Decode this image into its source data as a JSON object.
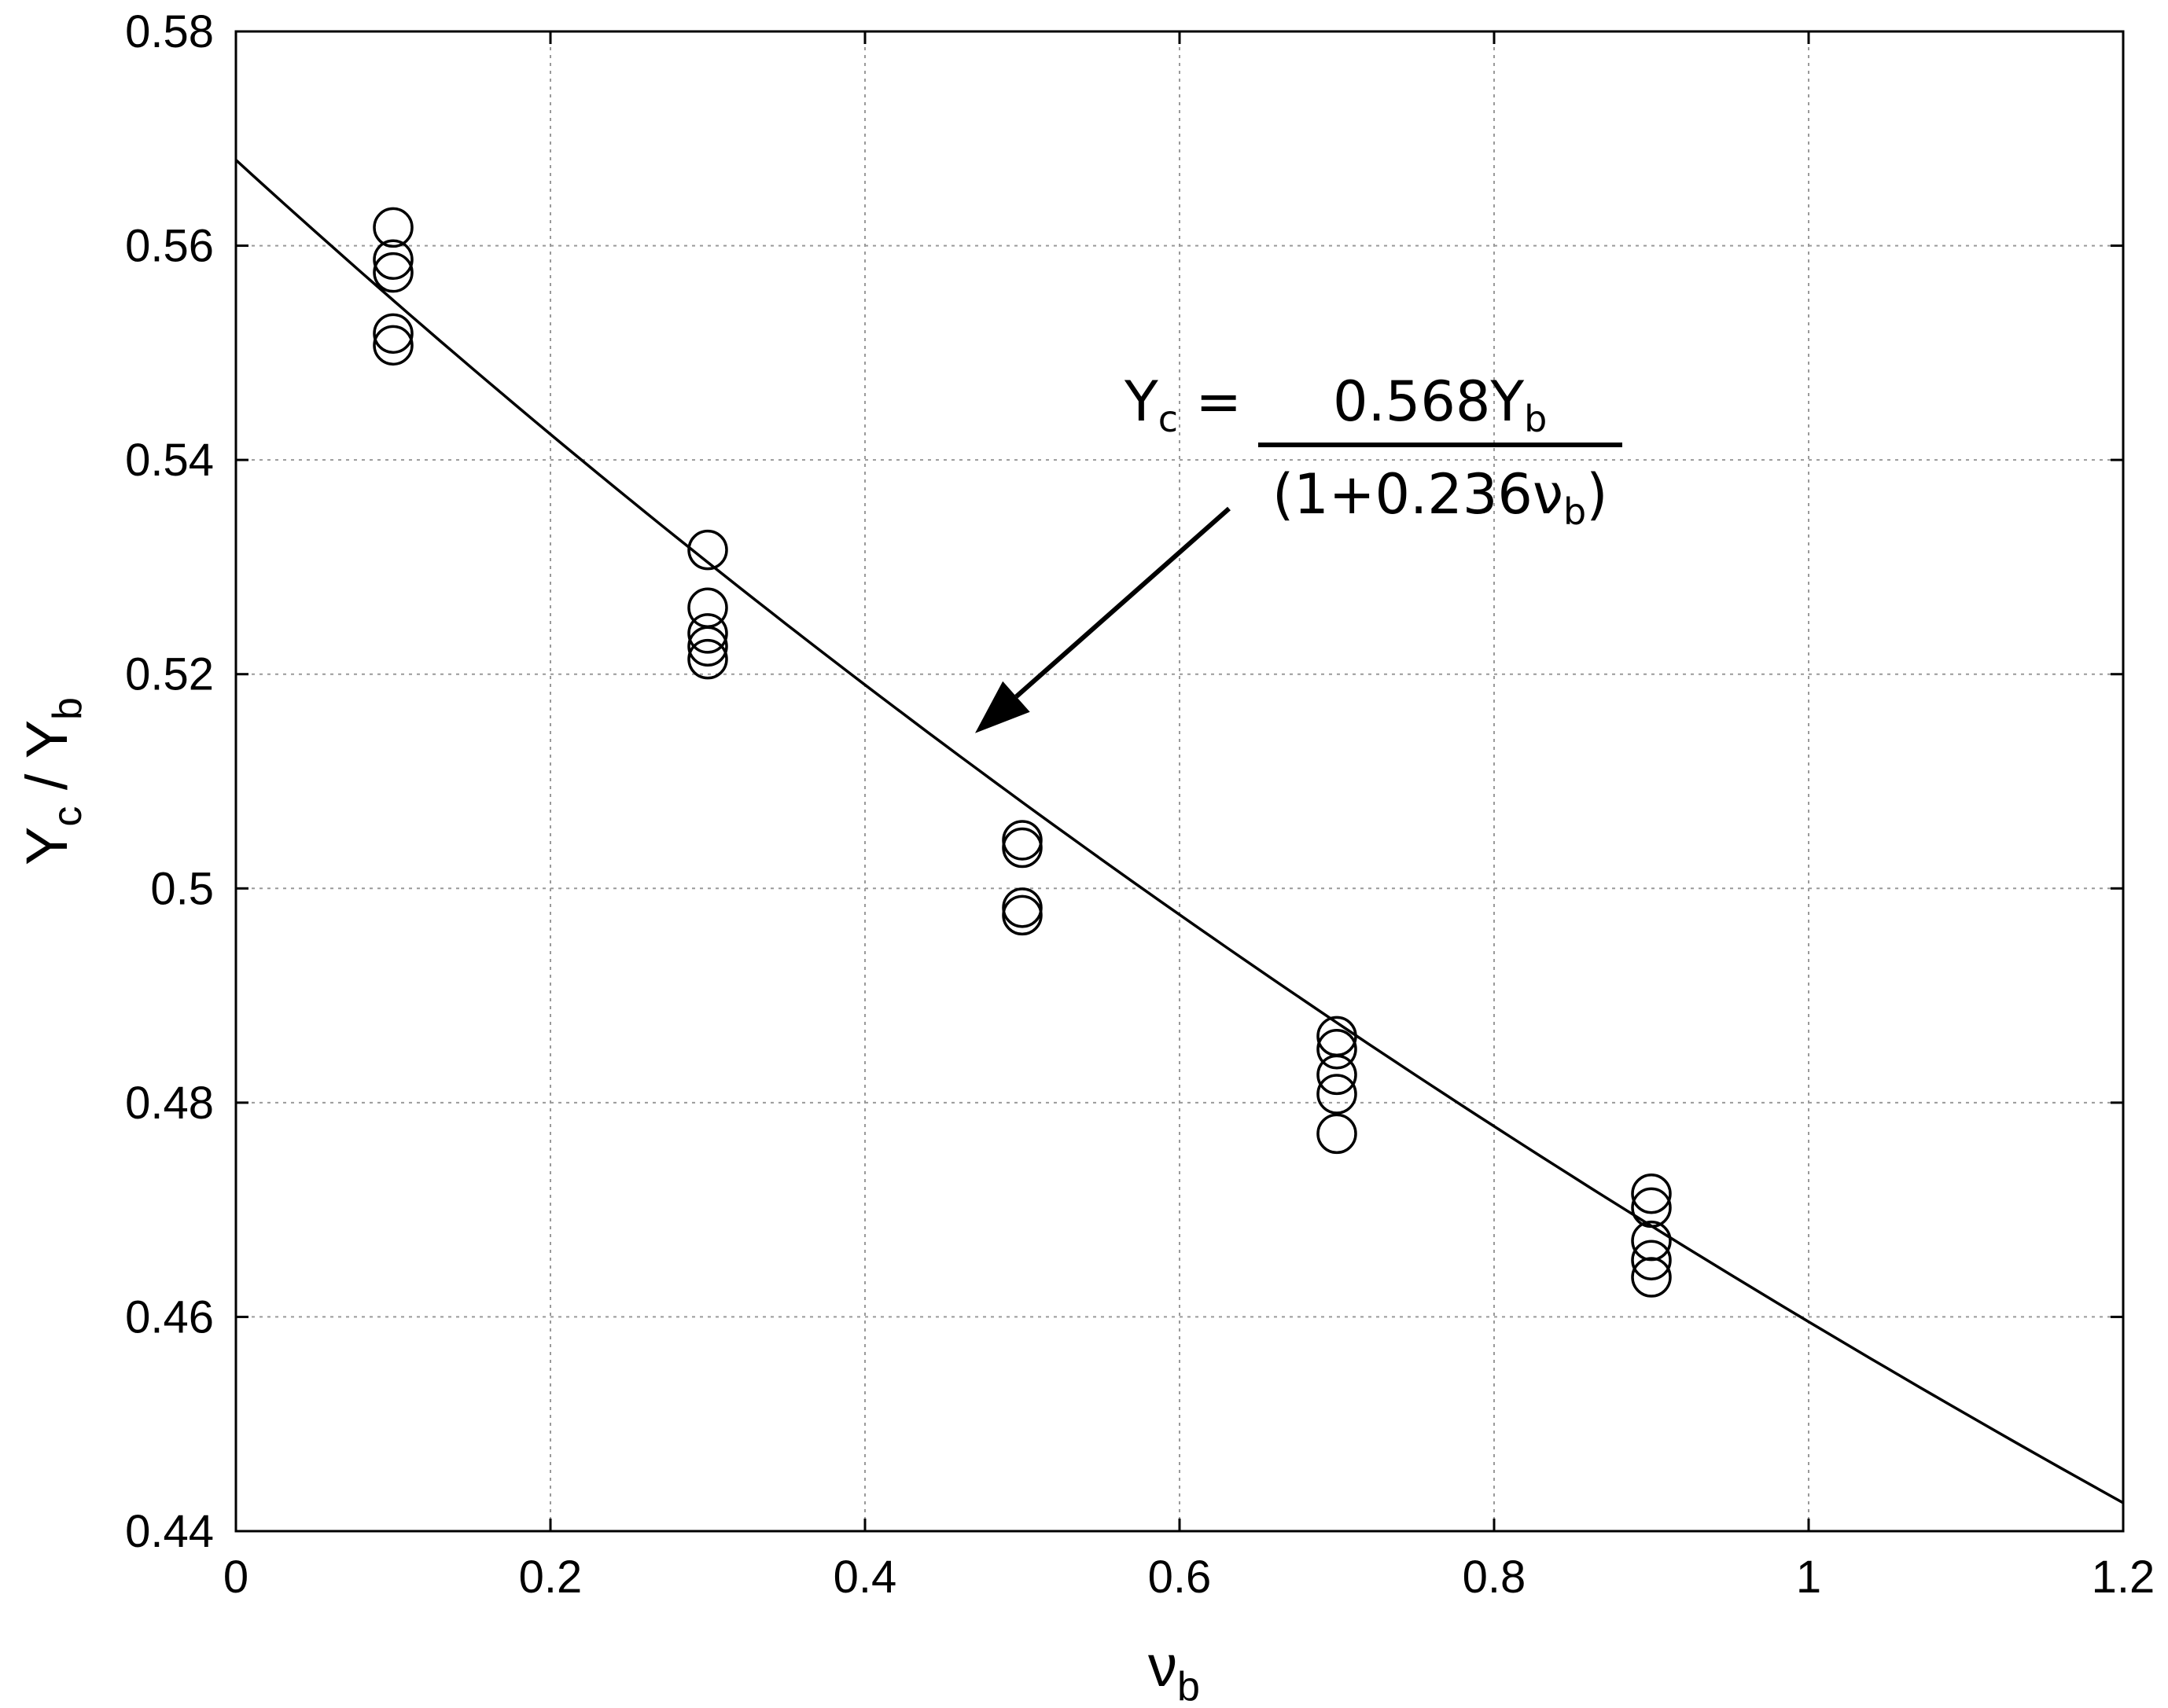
{
  "chart_data": {
    "type": "scatter",
    "xlabel": "ν",
    "xlabel_sub": "b",
    "ylabel_main": "Y",
    "ylabel_sub1": "c",
    "ylabel_sep": " / Y",
    "ylabel_sub2": "b",
    "xlim": [
      0,
      1.2
    ],
    "ylim": [
      0.44,
      0.58
    ],
    "xticks": [
      0,
      0.2,
      0.4,
      0.6,
      0.8,
      1,
      1.2
    ],
    "xtick_labels": [
      "0",
      "0.2",
      "0.4",
      "0.6",
      "0.8",
      "1",
      "1.2"
    ],
    "yticks": [
      0.44,
      0.46,
      0.48,
      0.5,
      0.52,
      0.54,
      0.56,
      0.58
    ],
    "ytick_labels": [
      "0.44",
      "0.46",
      "0.48",
      "0.5",
      "0.52",
      "0.54",
      "0.56",
      "0.58"
    ],
    "grid": true,
    "series": [
      {
        "marker": "open-circle",
        "points": [
          [
            0.1,
            0.5617
          ],
          [
            0.1,
            0.5587
          ],
          [
            0.1,
            0.5575
          ],
          [
            0.1,
            0.5518
          ],
          [
            0.1,
            0.5507
          ],
          [
            0.3,
            0.5316
          ],
          [
            0.3,
            0.5262
          ],
          [
            0.3,
            0.5238
          ],
          [
            0.3,
            0.5226
          ],
          [
            0.3,
            0.5214
          ],
          [
            0.5,
            0.5045
          ],
          [
            0.5,
            0.5038
          ],
          [
            0.5,
            0.4982
          ],
          [
            0.5,
            0.4975
          ],
          [
            0.7,
            0.4862
          ],
          [
            0.7,
            0.485
          ],
          [
            0.7,
            0.4826
          ],
          [
            0.7,
            0.4808
          ],
          [
            0.7,
            0.4771
          ],
          [
            0.9,
            0.4715
          ],
          [
            0.9,
            0.4702
          ],
          [
            0.9,
            0.4671
          ],
          [
            0.9,
            0.4653
          ],
          [
            0.9,
            0.4637
          ]
        ]
      },
      {
        "type": "line",
        "equation": {
          "a": 0.568,
          "b": 0.236
        }
      }
    ],
    "annotation": {
      "lhs": "Y",
      "lhs_sub": "c",
      "eq": " =",
      "numerator": "0.568Y",
      "numerator_sub": "b",
      "denominator": "(1+0.236ν",
      "denominator_sub": "b",
      "denominator_end": ")",
      "arrow_to": [
        0.47,
        0.5145
      ]
    }
  }
}
